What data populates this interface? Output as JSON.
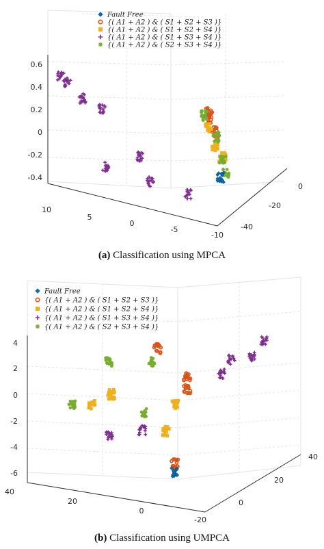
{
  "figure": {
    "legend_entries": [
      {
        "label": "Fault Free",
        "color": "#0072BD",
        "marker": "diamond"
      },
      {
        "label": "{( A1 + A2 ) & ( S1 + S2 + S3 )}",
        "color": "#D95319",
        "marker": "circle"
      },
      {
        "label": "{( A1 + A2 ) & ( S1 + S2 + S4 )}",
        "color": "#EDB120",
        "marker": "square"
      },
      {
        "label": "{( A1 + A2 ) & ( S1 + S3 + S4 )}",
        "color": "#7E2F8E",
        "marker": "plus"
      },
      {
        "label": "{( A1 + A2 ) & ( S2 + S3 + S4 )}",
        "color": "#77AC30",
        "marker": "star"
      }
    ]
  },
  "chart_data": [
    {
      "type": "scatter",
      "caption_letter": "(a)",
      "caption_text": " Classification using MPCA",
      "z_ticks": [
        "0.6",
        "0.4",
        "0.2",
        "0",
        "-0.2",
        "-0.4"
      ],
      "x_ticks": [
        "10",
        "5",
        "0",
        "-5",
        "-10"
      ],
      "y_ticks": [
        "0",
        "-20",
        "-40"
      ],
      "zlim": [
        -0.5,
        0.65
      ],
      "clusters": [
        {
          "series": 3,
          "x": 8.5,
          "y": 0,
          "z": 0.53
        },
        {
          "series": 3,
          "x": 8.0,
          "y": -2,
          "z": 0.48
        },
        {
          "series": 3,
          "x": 6.5,
          "y": -4,
          "z": 0.35
        },
        {
          "series": 3,
          "x": 4.5,
          "y": -6,
          "z": 0.28
        },
        {
          "series": 3,
          "x": 1.5,
          "y": -16,
          "z": -0.14
        },
        {
          "series": 3,
          "x": 7.5,
          "y": -28,
          "z": -0.39
        },
        {
          "series": 3,
          "x": 2.5,
          "y": -30,
          "z": -0.44
        },
        {
          "series": 3,
          "x": -1.5,
          "y": -33,
          "z": -0.49
        },
        {
          "series": 1,
          "x": -9.0,
          "y": 0,
          "z": 0.55
        },
        {
          "series": 1,
          "x": -9.0,
          "y": 0,
          "z": 0.48
        },
        {
          "series": 1,
          "x": -9.5,
          "y": -2,
          "z": 0.36
        },
        {
          "series": 2,
          "x": -9.0,
          "y": 0,
          "z": 0.4
        },
        {
          "series": 2,
          "x": -9.5,
          "y": -2,
          "z": 0.22
        },
        {
          "series": 2,
          "x": -10,
          "y": -4,
          "z": 0.13
        },
        {
          "series": 4,
          "x": -8.5,
          "y": 0,
          "z": 0.5
        },
        {
          "series": 4,
          "x": -9.5,
          "y": -2,
          "z": 0.31
        },
        {
          "series": 4,
          "x": -10,
          "y": -4,
          "z": 0.1
        },
        {
          "series": 4,
          "x": -9.5,
          "y": -10,
          "z": -0.05
        },
        {
          "series": 0,
          "x": -8.5,
          "y": -12,
          "z": -0.12
        }
      ]
    },
    {
      "type": "scatter",
      "caption_letter": "(b)",
      "caption_text": " Classification using UMPCA",
      "z_ticks": [
        "4",
        "2",
        "0",
        "-2",
        "-4",
        "-6"
      ],
      "x_ticks": [
        "40",
        "20",
        "0",
        "-20"
      ],
      "y_ticks": [
        "40",
        "20",
        "0"
      ],
      "zlim": [
        -6.5,
        4.5
      ],
      "clusters": [
        {
          "series": 3,
          "x": -16,
          "y": 30,
          "z": 3.2
        },
        {
          "series": 3,
          "x": -12,
          "y": 30,
          "z": 1.8
        },
        {
          "series": 3,
          "x": -5,
          "y": 30,
          "z": 1.3
        },
        {
          "series": 3,
          "x": -10,
          "y": 20,
          "z": 1.5
        },
        {
          "series": 3,
          "x": 5,
          "y": 5,
          "z": -1.7
        },
        {
          "series": 3,
          "x": 12,
          "y": 0,
          "z": -1.9
        },
        {
          "series": 1,
          "x": 12,
          "y": 20,
          "z": 2.6
        },
        {
          "series": 1,
          "x": 2,
          "y": 20,
          "z": 0.8
        },
        {
          "series": 1,
          "x": 2,
          "y": 20,
          "z": -0.1
        },
        {
          "series": 1,
          "x": 2,
          "y": 15,
          "z": -5.3
        },
        {
          "series": 2,
          "x": 18,
          "y": 8,
          "z": 0.2
        },
        {
          "series": 2,
          "x": 22,
          "y": 5,
          "z": -0.4
        },
        {
          "series": 2,
          "x": 2,
          "y": 15,
          "z": -0.7
        },
        {
          "series": 2,
          "x": 5,
          "y": 15,
          "z": -2.9
        },
        {
          "series": 4,
          "x": 22,
          "y": 12,
          "z": 2.1
        },
        {
          "series": 4,
          "x": 10,
          "y": 15,
          "z": 2.2
        },
        {
          "series": 4,
          "x": 28,
          "y": 4,
          "z": -0.6
        },
        {
          "series": 4,
          "x": 10,
          "y": 12,
          "z": -1.4
        },
        {
          "series": 0,
          "x": 2,
          "y": 15,
          "z": -5.9
        }
      ]
    }
  ]
}
